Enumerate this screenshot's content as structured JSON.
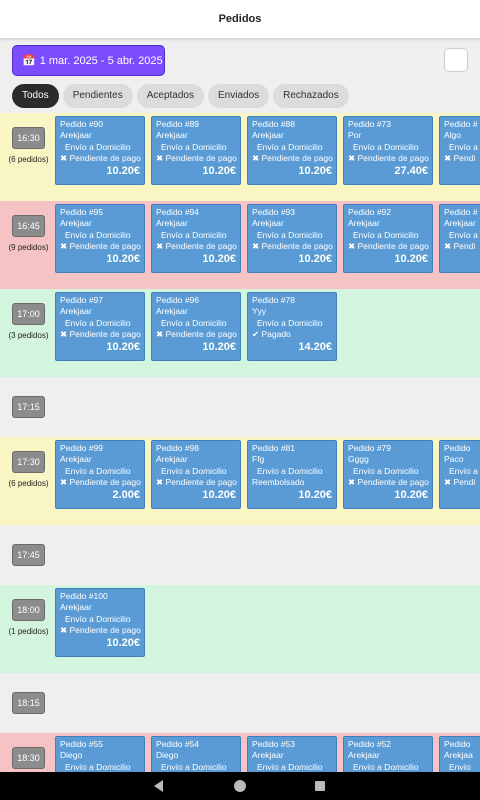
{
  "header": {
    "title": "Pedidos"
  },
  "date_range": {
    "icon": "calendar-icon",
    "label": "1 mar. 2025 - 5 abr. 2025"
  },
  "filters": [
    "Todos",
    "Pendientes",
    "Aceptados",
    "Enviados",
    "Rechazados"
  ],
  "rows": [
    {
      "time": "16:30",
      "count": "(6 pedidos)",
      "color": "yellow",
      "orders": [
        {
          "title": "Pedido #90",
          "customer": "Arekjaar",
          "delivery": "Envío a Domicilio",
          "status": "✖ Pendiente de pago",
          "price": "10.20€"
        },
        {
          "title": "Pedido #89",
          "customer": "Arekjaar",
          "delivery": "Envío a Domicilio",
          "status": "✖ Pendiente de pago",
          "price": "10.20€"
        },
        {
          "title": "Pedido #88",
          "customer": "Arekjaar",
          "delivery": "Envío a Domicilio",
          "status": "✖ Pendiente de pago",
          "price": "10.20€"
        },
        {
          "title": "Pedido #73",
          "customer": "Por",
          "delivery": "Envío a Domicilio",
          "status": "✖ Pendiente de pago",
          "price": "27.40€"
        },
        {
          "title": "Pedido #",
          "customer": "Algo",
          "delivery": "Envío a",
          "status": "✖ Pendi",
          "price": ""
        }
      ]
    },
    {
      "time": "16:45",
      "count": "(9 pedidos)",
      "color": "red",
      "orders": [
        {
          "title": "Pedido #95",
          "customer": "Arekjaar",
          "delivery": "Envío a Domicilio",
          "status": "✖ Pendiente de pago",
          "price": "10.20€"
        },
        {
          "title": "Pedido #94",
          "customer": "Arekjaar",
          "delivery": "Envío a Domicilio",
          "status": "✖ Pendiente de pago",
          "price": "10.20€"
        },
        {
          "title": "Pedido #93",
          "customer": "Arekjaar",
          "delivery": "Envío a Domicilio",
          "status": "✖ Pendiente de pago",
          "price": "10.20€"
        },
        {
          "title": "Pedido #92",
          "customer": "Arekjaar",
          "delivery": "Envío a Domicilio",
          "status": "✖ Pendiente de pago",
          "price": "10.20€"
        },
        {
          "title": "Pedido #",
          "customer": "Arekjaar",
          "delivery": "Envío a",
          "status": "✖ Pendi",
          "price": ""
        }
      ]
    },
    {
      "time": "17:00",
      "count": "(3 pedidos)",
      "color": "green",
      "orders": [
        {
          "title": "Pedido #97",
          "customer": "Arekjaar",
          "delivery": "Envío a Domicilio",
          "status": "✖ Pendiente de pago",
          "price": "10.20€"
        },
        {
          "title": "Pedido #96",
          "customer": "Arekjaar",
          "delivery": "Envío a Domicilio",
          "status": "✖ Pendiente de pago",
          "price": "10.20€"
        },
        {
          "title": "Pedido #78",
          "customer": "Yyy",
          "delivery": "Envío a Domicilio",
          "status": "✔ Pagado",
          "price": "14.20€"
        }
      ]
    },
    {
      "time": "17:15",
      "count": "",
      "color": "grey",
      "orders": []
    },
    {
      "time": "17:30",
      "count": "(6 pedidos)",
      "color": "yellow",
      "orders": [
        {
          "title": "Pedido #99",
          "customer": "Arekjaar",
          "delivery": "Envío a Domicilio",
          "status": "✖ Pendiente de pago",
          "price": "2.00€"
        },
        {
          "title": "Pedido #98",
          "customer": "Arekjaar",
          "delivery": "Envío a Domicilio",
          "status": "✖ Pendiente de pago",
          "price": "10.20€"
        },
        {
          "title": "Pedido #81",
          "customer": "Ffg",
          "delivery": "Envío a Domicilio",
          "status": "Reembolsado",
          "price": "10.20€"
        },
        {
          "title": "Pedido #79",
          "customer": "Gggg",
          "delivery": "Envío a Domicilio",
          "status": "✖ Pendiente de pago",
          "price": "10.20€"
        },
        {
          "title": "Pedido",
          "customer": "Paco",
          "delivery": "Envío a",
          "status": "✖ Pendi",
          "price": ""
        }
      ]
    },
    {
      "time": "17:45",
      "count": "",
      "color": "grey",
      "orders": []
    },
    {
      "time": "18:00",
      "count": "(1 pedidos)",
      "color": "green",
      "orders": [
        {
          "title": "Pedido #100",
          "customer": "Arekjaar",
          "delivery": "Envío a Domicilio",
          "status": "✖ Pendiente de pago",
          "price": "10.20€"
        }
      ]
    },
    {
      "time": "18:15",
      "count": "",
      "color": "grey",
      "orders": []
    },
    {
      "time": "18:30",
      "count": "",
      "color": "red",
      "orders": [
        {
          "title": "Pedido #55",
          "customer": "Diego",
          "delivery": "Envío a Domicilio",
          "status": "",
          "price": ""
        },
        {
          "title": "Pedido #54",
          "customer": "Diego",
          "delivery": "Envío a Domicilio",
          "status": "",
          "price": ""
        },
        {
          "title": "Pedido #53",
          "customer": "Arekjaar",
          "delivery": "Envío a Domicilio",
          "status": "",
          "price": ""
        },
        {
          "title": "Pedido #52",
          "customer": "Arekjaar",
          "delivery": "Envío a Domicilio",
          "status": "",
          "price": ""
        },
        {
          "title": "Pedido",
          "customer": "Arekjaa",
          "delivery": "Envío",
          "status": "",
          "price": ""
        }
      ]
    }
  ],
  "navbar": {
    "back": "back-icon",
    "home": "home-icon",
    "recents": "recents-icon"
  }
}
